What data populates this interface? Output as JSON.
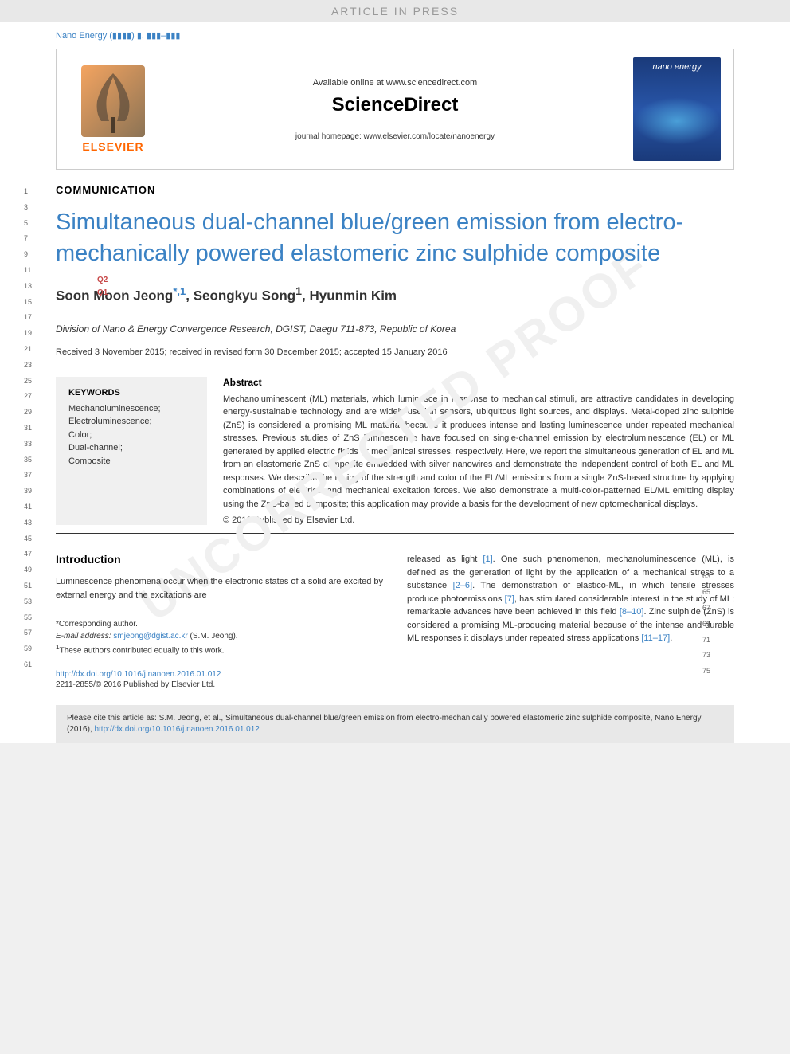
{
  "banner": {
    "text": "ARTICLE IN PRESS"
  },
  "journal_ref": "Nano Energy (▮▮▮▮) ▮, ▮▮▮–▮▮▮",
  "header": {
    "available": "Available online at www.sciencedirect.com",
    "brand": "ScienceDirect",
    "homepage": "journal homepage: www.elsevier.com/locate/nanoenergy",
    "publisher": "ELSEVIER",
    "cover_journal": "nano energy"
  },
  "article_type": "COMMUNICATION",
  "title": "Simultaneous dual-channel blue/green emission from electro-mechanically powered elastomeric zinc sulphide composite",
  "q_markers": {
    "q1": "Q1",
    "q2": "Q2"
  },
  "authors": {
    "a1": "Soon Moon Jeong",
    "a1_sup": "*,1",
    "a2": "Seongkyu Song",
    "a2_sup": "1",
    "a3": "Hyunmin Kim"
  },
  "affiliation": "Division of Nano & Energy Convergence Research, DGIST, Daegu 711-873, Republic of Korea",
  "dates": "Received 3 November 2015; received in revised form 30 December 2015; accepted 15 January 2016",
  "keywords": {
    "title": "KEYWORDS",
    "items": [
      "Mechanoluminescence;",
      "Electroluminescence;",
      "Color;",
      "Dual-channel;",
      "Composite"
    ]
  },
  "abstract": {
    "title": "Abstract",
    "text": "Mechanoluminescent (ML) materials, which luminesce in response to mechanical stimuli, are attractive candidates in developing energy-sustainable technology and are widely used in sensors, ubiquitous light sources, and displays. Metal-doped zinc sulphide (ZnS) is considered a promising ML material because it produces intense and lasting luminescence under repeated mechanical stresses. Previous studies of ZnS luminescence have focused on single-channel emission by electroluminescence (EL) or ML generated by applied electric fields or mechanical stresses, respectively. Here, we report the simultaneous generation of EL and ML from an elastomeric ZnS composite embedded with silver nanowires and demonstrate the independent control of both EL and ML responses. We describe the tuning of the strength and color of the EL/ML emissions from a single ZnS-based structure by applying combinations of electrical and mechanical excitation forces. We also demonstrate a multi-color-patterned EL/ML emitting display using the ZnS-based composite; this application may provide a basis for the development of new optomechanical displays.",
    "copyright": "© 2016 Published by Elsevier Ltd."
  },
  "intro": {
    "title": "Introduction",
    "left_text": "Luminescence phenomena occur when the electronic states of a solid are excited by external energy and the excitations are",
    "right_text_1": "released as light ",
    "cite_1": "[1]",
    "right_text_2": ". One such phenomenon, mechanoluminescence (ML), is defined as the generation of light by the application of a mechanical stress to a substance ",
    "cite_2": "[2–6]",
    "right_text_3": ". The demonstration of elastico-ML, in which tensile stresses produce photoemissions ",
    "cite_3": "[7]",
    "right_text_4": ", has stimulated considerable interest in the study of ML; remarkable advances have been achieved in this field ",
    "cite_4": "[8–10]",
    "right_text_5": ". Zinc sulphide (ZnS) is considered a promising ML-producing material because of the intense and durable ML responses it displays under repeated stress applications ",
    "cite_5": "[11–17]",
    "right_text_6": "."
  },
  "footnotes": {
    "corr": "*Corresponding author.",
    "email_label": "E-mail address: ",
    "email": "smjeong@dgist.ac.kr",
    "email_name": " (S.M. Jeong).",
    "equal": "1These authors contributed equally to this work."
  },
  "doi": {
    "url": "http://dx.doi.org/10.1016/j.nanoen.2016.01.012",
    "issn": "2211-2855/© 2016 Published by Elsevier Ltd."
  },
  "cite_box": {
    "text": "Please cite this article as: S.M. Jeong, et al., Simultaneous dual-channel blue/green emission from electro-mechanically powered elastomeric zinc sulphide composite, Nano Energy (2016), ",
    "url": "http://dx.doi.org/10.1016/j.nanoen.2016.01.012"
  },
  "line_numbers": {
    "left": [
      "1",
      "3",
      "5",
      "7",
      "9",
      "11",
      "13",
      "15",
      "17",
      "19",
      "21",
      "23",
      "25",
      "27",
      "29",
      "31",
      "33",
      "35",
      "37",
      "39",
      "41",
      "43",
      "45",
      "47",
      "49",
      "51",
      "53",
      "55",
      "57",
      "59",
      "61"
    ],
    "right": [
      "63",
      "65",
      "67",
      "69",
      "71",
      "73",
      "75"
    ]
  },
  "watermark": "UNCORRECTED PROOF",
  "colors": {
    "link": "#3b82c4",
    "q_marker": "#c74848",
    "publisher": "#ff6600",
    "banner_bg": "#e8e8e8",
    "keywords_bg": "#f0f0f0"
  }
}
